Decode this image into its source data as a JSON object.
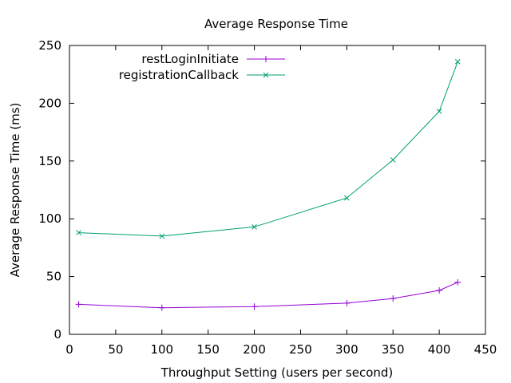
{
  "chart_data": {
    "type": "line",
    "title": "Average Response Time",
    "xlabel": "Throughput Setting (users per second)",
    "ylabel": "Average Response Time (ms)",
    "xlim": [
      0,
      450
    ],
    "ylim": [
      0,
      250
    ],
    "xticks": [
      0,
      50,
      100,
      150,
      200,
      250,
      300,
      350,
      400,
      450
    ],
    "yticks": [
      0,
      50,
      100,
      150,
      200,
      250
    ],
    "grid": false,
    "legend_position": "top-left",
    "series": [
      {
        "name": "restLoginInitiate",
        "color": "#9400d3",
        "marker": "plus",
        "x": [
          10,
          100,
          200,
          300,
          350,
          400,
          420
        ],
        "y": [
          26,
          23,
          24,
          27,
          31,
          38,
          45
        ]
      },
      {
        "name": "registrationCallback",
        "color": "#009e73",
        "marker": "cross",
        "x": [
          10,
          100,
          200,
          300,
          350,
          400,
          420
        ],
        "y": [
          88,
          85,
          93,
          118,
          151,
          193,
          236
        ]
      }
    ]
  }
}
